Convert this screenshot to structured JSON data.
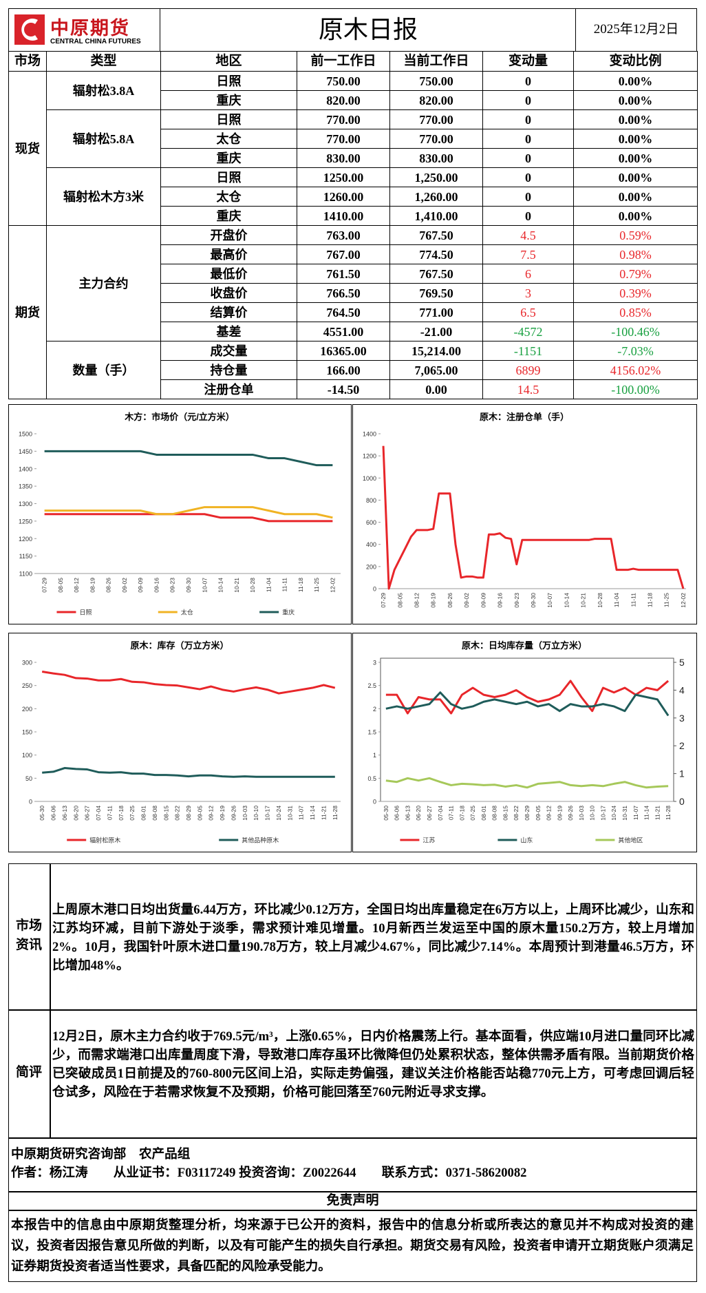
{
  "header": {
    "logo": "中原期货",
    "logo_en": "CENTRAL CHINA FUTURES",
    "title": "原木日报",
    "date": "2025年12月2日"
  },
  "table": {
    "columns": [
      "市场",
      "类型",
      "地区",
      "前一工作日",
      "当前工作日",
      "变动量",
      "变动比例"
    ],
    "groups": [
      {
        "market": "现货",
        "types": [
          {
            "type": "辐射松3.8A",
            "rows": [
              [
                "日照",
                "750.00",
                "750.00",
                "0",
                "0.00%"
              ],
              [
                "重庆",
                "820.00",
                "820.00",
                "0",
                "0.00%"
              ]
            ]
          },
          {
            "type": "辐射松5.8A",
            "rows": [
              [
                "日照",
                "770.00",
                "770.00",
                "0",
                "0.00%"
              ],
              [
                "太仓",
                "770.00",
                "770.00",
                "0",
                "0.00%"
              ],
              [
                "重庆",
                "830.00",
                "830.00",
                "0",
                "0.00%"
              ]
            ]
          },
          {
            "type": "辐射松木方3米",
            "rows": [
              [
                "日照",
                "1250.00",
                "1,250.00",
                "0",
                "0.00%"
              ],
              [
                "太仓",
                "1260.00",
                "1,260.00",
                "0",
                "0.00%"
              ],
              [
                "重庆",
                "1410.00",
                "1,410.00",
                "0",
                "0.00%"
              ]
            ]
          }
        ]
      },
      {
        "market": "期货",
        "types": [
          {
            "type": "主力合约",
            "rows": [
              [
                "开盘价",
                "763.00",
                "767.50",
                "4.5",
                "0.59%"
              ],
              [
                "最高价",
                "767.00",
                "774.50",
                "7.5",
                "0.98%"
              ],
              [
                "最低价",
                "761.50",
                "767.50",
                "6",
                "0.79%"
              ],
              [
                "收盘价",
                "766.50",
                "769.50",
                "3",
                "0.39%"
              ],
              [
                "结算价",
                "764.50",
                "771.00",
                "6.5",
                "0.85%"
              ],
              [
                "基差",
                "4551.00",
                "-21.00",
                "-4572",
                "-100.46%"
              ]
            ]
          },
          {
            "type": "数量（手）",
            "rows": [
              [
                "成交量",
                "16365.00",
                "15,214.00",
                "-1151",
                "-7.03%"
              ],
              [
                "持仓量",
                "166.00",
                "7,065.00",
                "6899",
                "4156.02%"
              ],
              [
                "注册仓单",
                "-14.50",
                "0.00",
                "14.5",
                "-100.00%"
              ]
            ]
          }
        ]
      }
    ]
  },
  "chart_data": [
    {
      "type": "line",
      "title": "木方：市场价（元/立方米）",
      "categories": [
        "07-29",
        "08-05",
        "08-12",
        "08-19",
        "08-26",
        "09-02",
        "09-09",
        "09-16",
        "09-23",
        "09-30",
        "10-07",
        "10-14",
        "10-21",
        "10-28",
        "11-04",
        "11-11",
        "11-18",
        "11-25",
        "12-02"
      ],
      "series": [
        {
          "name": "日照",
          "color": "#e8262a",
          "values": [
            1270,
            1270,
            1270,
            1270,
            1270,
            1270,
            1270,
            1270,
            1270,
            1270,
            1270,
            1260,
            1260,
            1260,
            1250,
            1250,
            1250,
            1250,
            1250
          ]
        },
        {
          "name": "太仓",
          "color": "#f0b323",
          "values": [
            1280,
            1280,
            1280,
            1280,
            1280,
            1280,
            1280,
            1270,
            1270,
            1280,
            1290,
            1290,
            1290,
            1290,
            1280,
            1270,
            1270,
            1270,
            1260
          ]
        },
        {
          "name": "重庆",
          "color": "#1f5c5a",
          "values": [
            1450,
            1450,
            1450,
            1450,
            1450,
            1450,
            1450,
            1440,
            1440,
            1440,
            1440,
            1440,
            1440,
            1440,
            1430,
            1430,
            1420,
            1410,
            1410
          ]
        }
      ],
      "ylim": [
        1100,
        1500
      ],
      "yticks": [
        1100,
        1150,
        1200,
        1250,
        1300,
        1350,
        1400,
        1450,
        1500
      ],
      "grid": false,
      "legend": "bottom"
    },
    {
      "type": "line",
      "title": "原木：注册仓单（手）",
      "categories": [
        "07-29",
        null,
        null,
        "08-05",
        null,
        null,
        "08-12",
        null,
        null,
        "08-19",
        null,
        null,
        "08-26",
        null,
        null,
        "09-02",
        null,
        null,
        "09-09",
        null,
        null,
        "09-16",
        null,
        null,
        "09-23",
        null,
        null,
        "09-30",
        null,
        null,
        "10-07",
        null,
        null,
        "10-14",
        null,
        null,
        "10-21",
        null,
        null,
        "10-28",
        null,
        null,
        "11-04",
        null,
        null,
        "11-11",
        null,
        null,
        "11-18",
        null,
        null,
        "11-25",
        null,
        null,
        "12-02"
      ],
      "series": [
        {
          "color": "#e8262a",
          "values": [
            1290,
            0,
            170,
            270,
            370,
            470,
            530,
            530,
            530,
            540,
            860,
            860,
            860,
            400,
            100,
            110,
            110,
            100,
            100,
            490,
            490,
            500,
            460,
            450,
            220,
            440,
            440,
            440,
            440,
            440,
            440,
            440,
            440,
            440,
            440,
            440,
            440,
            440,
            450,
            450,
            450,
            450,
            170,
            170,
            170,
            180,
            170,
            170,
            170,
            170,
            170,
            170,
            170,
            170,
            0
          ]
        }
      ],
      "ylim": [
        0,
        1400
      ],
      "yticks": [
        0,
        200,
        400,
        600,
        800,
        1000,
        1200,
        1400
      ],
      "grid": false
    },
    {
      "type": "line",
      "title": "原木：库存（万立方米）",
      "categories": [
        "05-30",
        "06-06",
        "06-13",
        "06-20",
        "06-27",
        "07-04",
        "07-11",
        "07-18",
        "07-25",
        "08-01",
        "08-08",
        "08-15",
        "08-22",
        "08-29",
        "09-05",
        "09-12",
        "09-19",
        "09-26",
        "10-03",
        "10-10",
        "10-17",
        "10-24",
        "10-31",
        "11-07",
        "11-14",
        "11-21",
        "11-28"
      ],
      "series": [
        {
          "name": "辐射松原木",
          "color": "#e8262a",
          "values": [
            280,
            276,
            273,
            266,
            265,
            261,
            261,
            264,
            258,
            257,
            253,
            251,
            250,
            246,
            242,
            248,
            241,
            237,
            242,
            246,
            241,
            233,
            237,
            241,
            245,
            251,
            245
          ]
        },
        {
          "name": "其他品种原木",
          "color": "#1f5c5a",
          "values": [
            62,
            64,
            72,
            70,
            69,
            63,
            62,
            63,
            60,
            60,
            57,
            57,
            56,
            54,
            56,
            56,
            54,
            53,
            54,
            53,
            53,
            53,
            53,
            53,
            53,
            53,
            53
          ]
        }
      ],
      "ylim": [
        0,
        300
      ],
      "yticks": [
        0,
        50,
        100,
        150,
        200,
        250,
        300
      ],
      "grid": false,
      "legend": "bottom"
    },
    {
      "type": "line",
      "title": "原木：日均库存量（万立方米）",
      "categories": [
        "05-30",
        "06-06",
        "06-13",
        "06-20",
        "06-27",
        "07-04",
        "07-11",
        "07-18",
        "07-25",
        "08-01",
        "08-08",
        "08-15",
        "08-22",
        "08-29",
        "09-05",
        "09-12",
        "09-19",
        "09-26",
        "10-03",
        "10-10",
        "10-17",
        "10-24",
        "10-31",
        "11-07",
        "11-14",
        "11-21",
        "11-28"
      ],
      "series": [
        {
          "name": "江苏",
          "color": "#e8262a",
          "values": [
            2.3,
            2.3,
            1.9,
            2.25,
            2.2,
            2.2,
            1.9,
            2.3,
            2.45,
            2.3,
            2.25,
            2.3,
            2.4,
            2.25,
            2.15,
            2.2,
            2.3,
            2.6,
            2.25,
            1.95,
            2.45,
            2.35,
            2.45,
            2.3,
            2.45,
            2.4,
            2.6
          ]
        },
        {
          "name": "山东",
          "color": "#1f5c5a",
          "values": [
            2.0,
            2.05,
            2.0,
            2.05,
            2.1,
            2.35,
            2.1,
            2.0,
            2.05,
            2.15,
            2.2,
            2.15,
            2.1,
            2.15,
            2.05,
            2.1,
            1.95,
            2.1,
            2.05,
            2.05,
            2.1,
            2.05,
            1.95,
            2.3,
            2.25,
            2.2,
            1.85
          ]
        },
        {
          "name": "其他地区",
          "color": "#a6c85a",
          "values": [
            0.45,
            0.42,
            0.5,
            0.45,
            0.5,
            0.42,
            0.35,
            0.38,
            0.37,
            0.35,
            0.36,
            0.32,
            0.35,
            0.3,
            0.38,
            0.4,
            0.42,
            0.35,
            0.33,
            0.35,
            0.33,
            0.38,
            0.42,
            0.35,
            0.3,
            0.32,
            0.33
          ]
        }
      ],
      "ylim": [
        0,
        3
      ],
      "yticks": [
        0,
        0.5,
        1,
        1.5,
        2,
        2.5,
        3
      ],
      "y2lim": [
        0,
        5
      ],
      "y2ticks": [
        0,
        1,
        2,
        3,
        4,
        5
      ],
      "grid": false,
      "legend": "bottom",
      "frame": true
    }
  ],
  "news": {
    "label": "市场资讯",
    "text": "上周原木港口日均出货量6.44万方，环比减少0.12万方，全国日均出库量稳定在6万方以上，上周环比减少，山东和江苏均环减，目前下游处于淡季，需求预计难见增量。10月新西兰发运至中国的原木量150.2万方，较上月增加2%。10月，我国针叶原木进口量190.78万方，较上月减少4.67%，同比减少7.14%。本周预计到港量46.5万方，环比增加48%。"
  },
  "comment": {
    "label": "简评",
    "text": "12月2日，原木主力合约收于769.5元/m³，上涨0.65%，日内价格震荡上行。基本面看，供应端10月进口量同环比减少，而需求端港口出库量周度下滑，导致港口库存虽环比微降但仍处累积状态，整体供需矛盾有限。当前期货价格已突破成员1日前提及的760-800元区间上沿，实际走势偏强，建议关注价格能否站稳770元上方，可考虑回调后轻仓试多，风险在于若需求恢复不及预期，价格可能回落至760元附近寻求支撑。"
  },
  "footer": {
    "dept": "中原期货研究咨询部　农产品组",
    "author": "作者：杨江涛　　从业证书：F03117249 投资咨询：Z0022644　　联系方式：0371-58620082"
  },
  "disclaimer": {
    "title": "免责声明",
    "text": "本报告中的信息由中原期货整理分析，均来源于已公开的资料，报告中的信息分析或所表达的意见并不构成对投资的建议，投资者因报告意见所做的判断，以及有可能产生的损失自行承担。期货交易有风险，投资者申请开立期货账户须满足证券期货投资者适当性要求，具备匹配的风险承受能力。"
  }
}
